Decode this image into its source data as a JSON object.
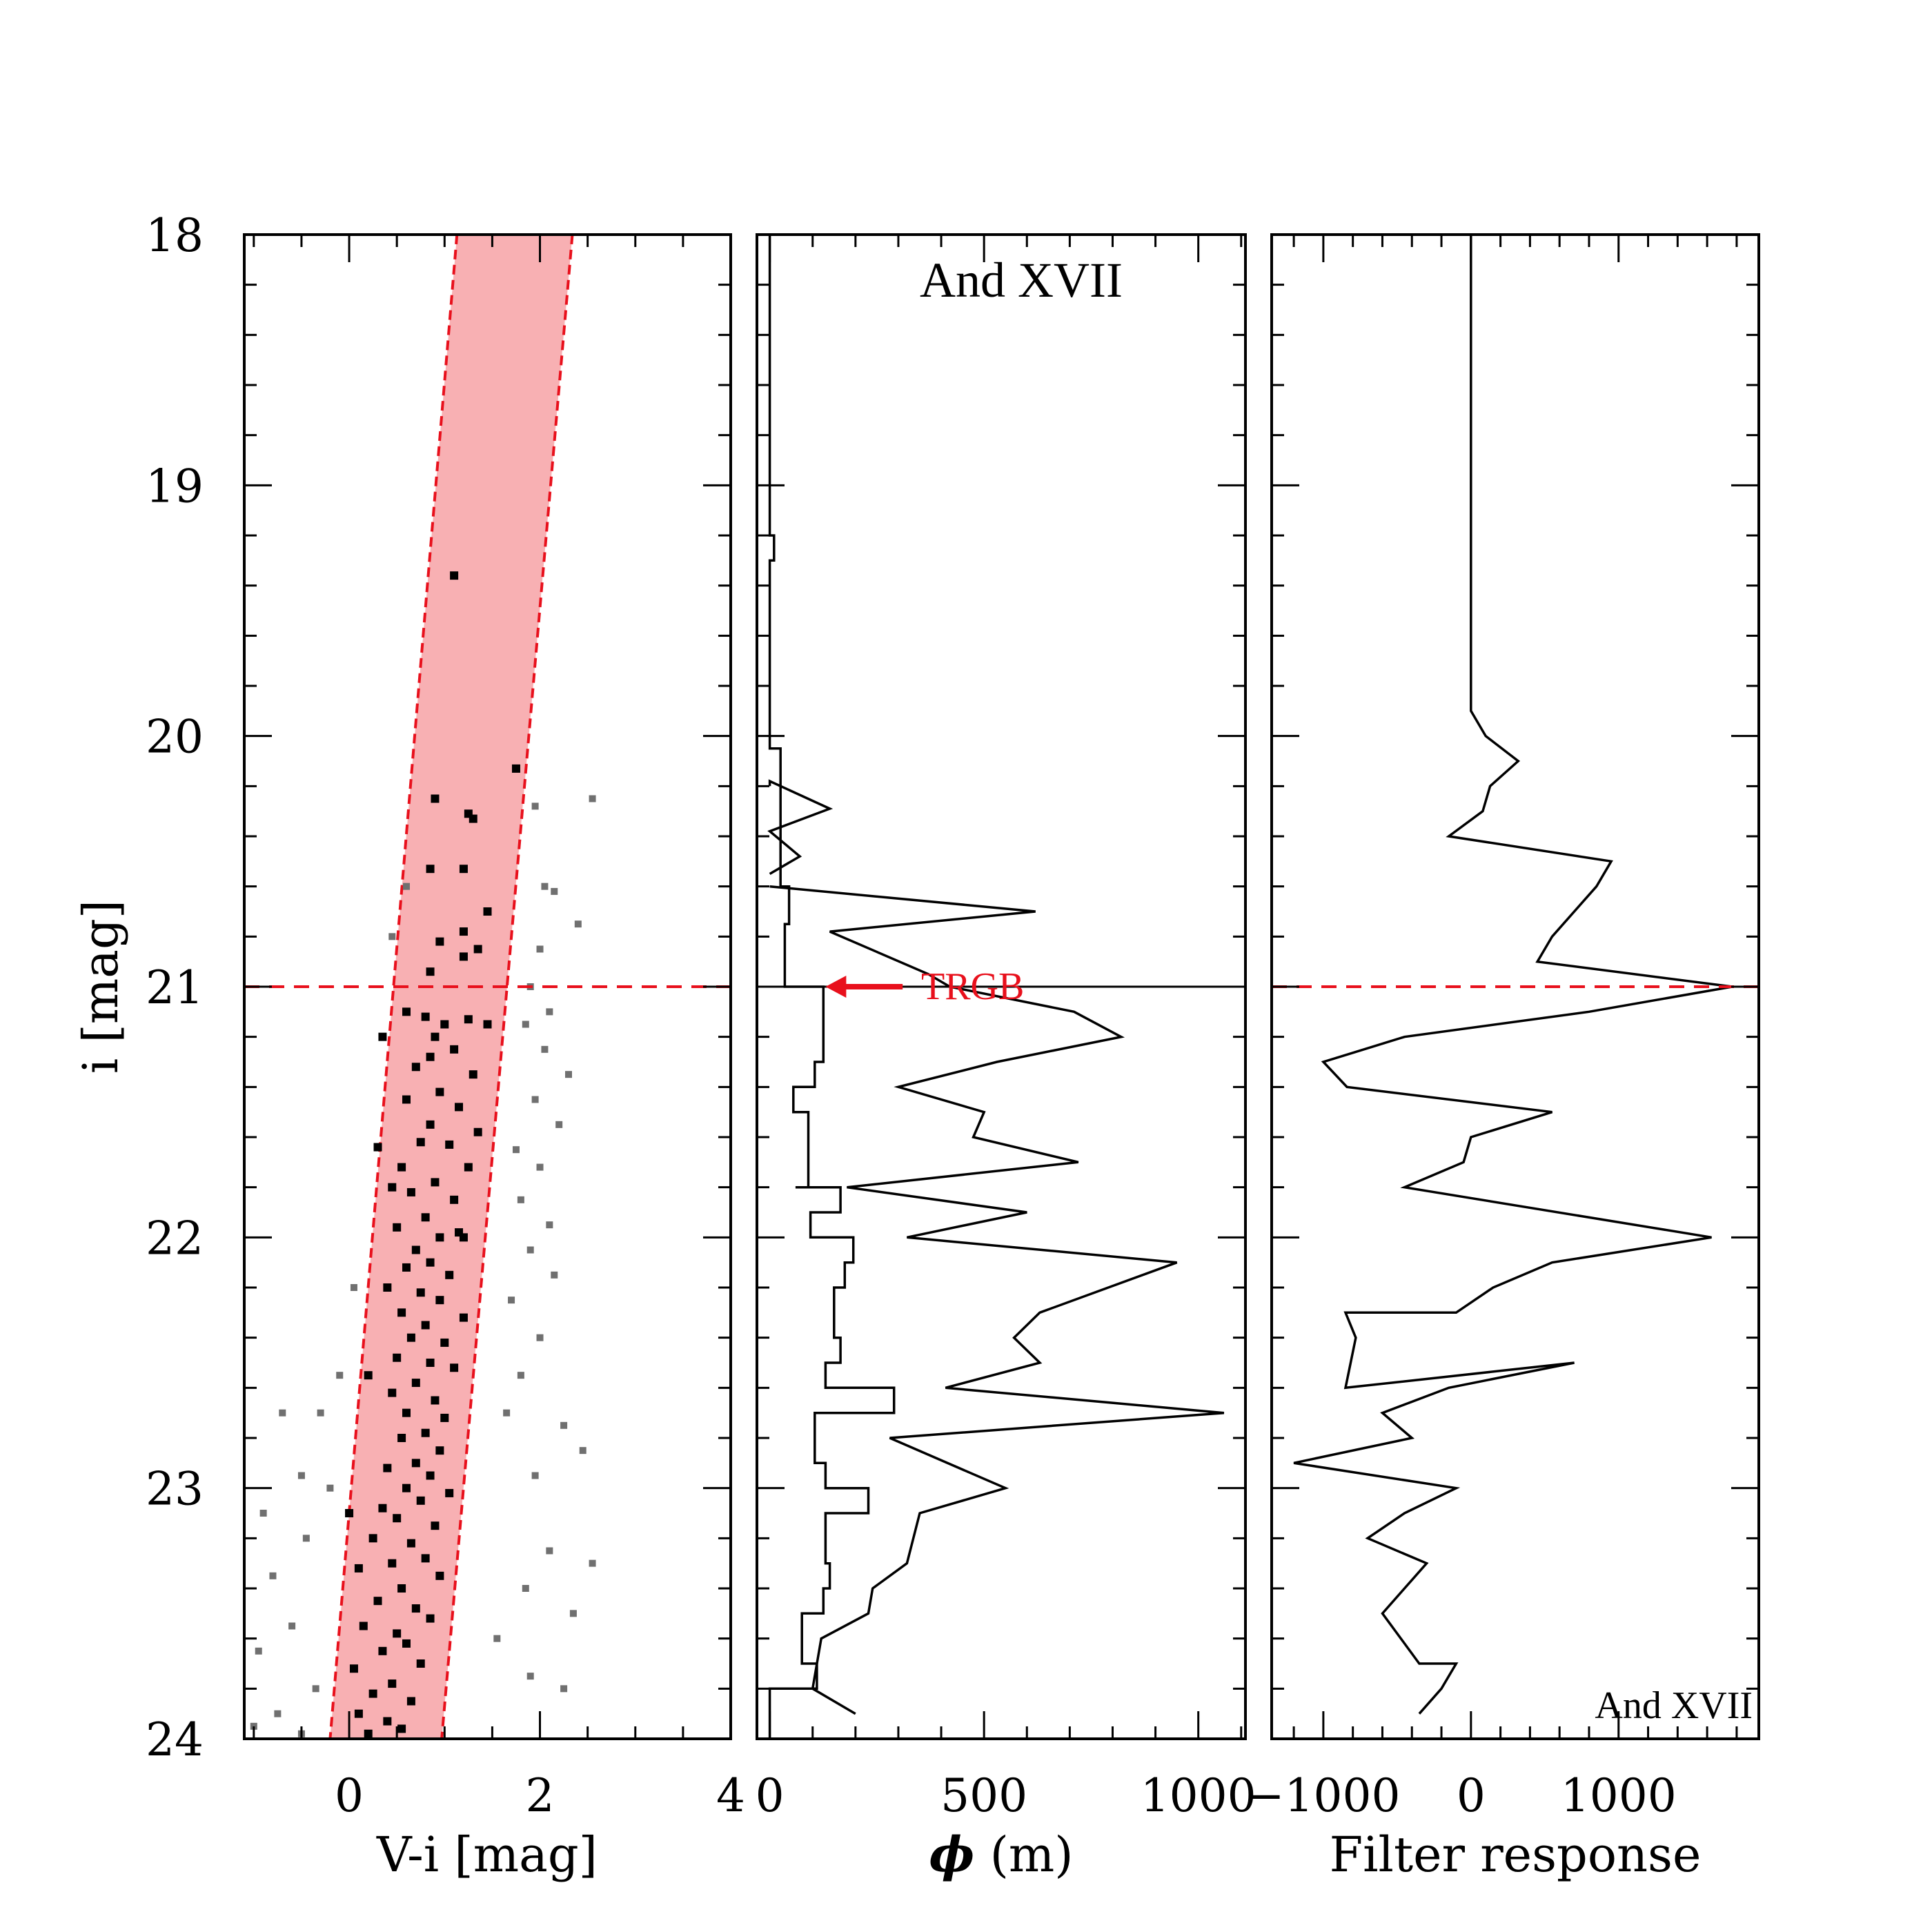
{
  "colors": {
    "rgb_band_fill": "#f8b0b3",
    "rgb_band_edge": "#e8101c",
    "trgb_line": "#e8101c",
    "trgb_label": "#e8101c",
    "member_star": "#000000",
    "field_star": "#707070",
    "line": "#000000"
  },
  "chart_data": [
    {
      "panel": "cmd",
      "type": "scatter",
      "xlabel": "V-i [mag]",
      "ylabel": "i [mag]",
      "xlim": [
        -1.1,
        4.0
      ],
      "ylim": [
        24,
        18
      ],
      "xticks": [
        0,
        2,
        4
      ],
      "xtick_labels": [
        "0",
        "2",
        "4"
      ],
      "yticks": [
        18,
        19,
        20,
        21,
        22,
        23,
        24
      ],
      "ytick_labels": [
        "18",
        "19",
        "20",
        "21",
        "22",
        "23",
        "24"
      ],
      "rgb_selection_band": {
        "left_edge": [
          [
            1.13,
            18.0
          ],
          [
            -0.2,
            24.0
          ]
        ],
        "right_edge": [
          [
            2.34,
            18.0
          ],
          [
            0.97,
            24.0
          ]
        ]
      },
      "trgb_mag": 21.0,
      "member_stars": [
        [
          1.1,
          19.36
        ],
        [
          1.75,
          20.13
        ],
        [
          0.9,
          20.25
        ],
        [
          1.25,
          20.31
        ],
        [
          1.3,
          20.33
        ],
        [
          0.85,
          20.53
        ],
        [
          1.2,
          20.53
        ],
        [
          1.45,
          20.7
        ],
        [
          1.2,
          20.78
        ],
        [
          0.95,
          20.82
        ],
        [
          1.35,
          20.85
        ],
        [
          1.2,
          20.88
        ],
        [
          0.85,
          20.94
        ],
        [
          0.6,
          21.1
        ],
        [
          0.8,
          21.12
        ],
        [
          1.0,
          21.15
        ],
        [
          1.25,
          21.13
        ],
        [
          1.45,
          21.15
        ],
        [
          0.9,
          21.2
        ],
        [
          1.1,
          21.25
        ],
        [
          0.7,
          21.32
        ],
        [
          0.85,
          21.28
        ],
        [
          1.3,
          21.35
        ],
        [
          0.95,
          21.42
        ],
        [
          0.6,
          21.45
        ],
        [
          1.15,
          21.48
        ],
        [
          0.85,
          21.55
        ],
        [
          1.35,
          21.58
        ],
        [
          0.75,
          21.62
        ],
        [
          1.05,
          21.63
        ],
        [
          0.3,
          21.64
        ],
        [
          1.25,
          21.72
        ],
        [
          0.55,
          21.72
        ],
        [
          0.9,
          21.78
        ],
        [
          0.65,
          21.82
        ],
        [
          1.1,
          21.85
        ],
        [
          0.8,
          21.92
        ],
        [
          0.5,
          21.96
        ],
        [
          0.95,
          22.0
        ],
        [
          1.15,
          21.98
        ],
        [
          0.7,
          22.05
        ],
        [
          0.85,
          22.1
        ],
        [
          0.6,
          22.12
        ],
        [
          1.05,
          22.15
        ],
        [
          0.4,
          22.2
        ],
        [
          0.75,
          22.22
        ],
        [
          0.95,
          22.25
        ],
        [
          0.55,
          22.3
        ],
        [
          1.2,
          22.32
        ],
        [
          0.8,
          22.35
        ],
        [
          0.65,
          22.4
        ],
        [
          1.0,
          22.42
        ],
        [
          0.5,
          22.48
        ],
        [
          0.85,
          22.5
        ],
        [
          1.1,
          22.52
        ],
        [
          0.7,
          22.58
        ],
        [
          0.45,
          22.62
        ],
        [
          0.9,
          22.65
        ],
        [
          0.6,
          22.7
        ],
        [
          1.0,
          22.72
        ],
        [
          0.8,
          22.78
        ],
        [
          0.55,
          22.8
        ],
        [
          0.95,
          22.85
        ],
        [
          0.7,
          22.9
        ],
        [
          0.4,
          22.92
        ],
        [
          0.85,
          22.95
        ],
        [
          0.6,
          23.0
        ],
        [
          1.05,
          23.02
        ],
        [
          0.75,
          23.05
        ],
        [
          0.35,
          23.08
        ],
        [
          0.5,
          23.12
        ],
        [
          0.9,
          23.15
        ],
        [
          0.25,
          23.2
        ],
        [
          0.65,
          23.22
        ],
        [
          0.8,
          23.28
        ],
        [
          0.45,
          23.3
        ],
        [
          0.1,
          23.32
        ],
        [
          0.95,
          23.35
        ],
        [
          0.55,
          23.4
        ],
        [
          0.3,
          23.45
        ],
        [
          0.7,
          23.48
        ],
        [
          0.85,
          23.52
        ],
        [
          0.15,
          23.55
        ],
        [
          0.5,
          23.58
        ],
        [
          0.6,
          23.62
        ],
        [
          0.35,
          23.65
        ],
        [
          0.75,
          23.7
        ],
        [
          0.05,
          23.72
        ],
        [
          0.45,
          23.78
        ],
        [
          0.25,
          23.82
        ],
        [
          0.65,
          23.85
        ],
        [
          0.1,
          23.9
        ],
        [
          0.4,
          23.93
        ],
        [
          0.55,
          23.96
        ],
        [
          0.2,
          23.98
        ],
        [
          0.35,
          21.2
        ],
        [
          0.45,
          21.8
        ],
        [
          0.2,
          22.55
        ],
        [
          0.0,
          23.1
        ],
        [
          1.2,
          22.0
        ]
      ],
      "field_stars": [
        [
          2.55,
          20.25
        ],
        [
          1.95,
          20.28
        ],
        [
          2.05,
          20.6
        ],
        [
          2.15,
          20.62
        ],
        [
          2.4,
          20.75
        ],
        [
          2.0,
          20.85
        ],
        [
          1.9,
          21.0
        ],
        [
          2.1,
          21.1
        ],
        [
          1.85,
          21.15
        ],
        [
          2.05,
          21.25
        ],
        [
          2.3,
          21.35
        ],
        [
          1.95,
          21.45
        ],
        [
          2.2,
          21.55
        ],
        [
          1.75,
          21.65
        ],
        [
          2.0,
          21.72
        ],
        [
          1.8,
          21.85
        ],
        [
          2.1,
          21.95
        ],
        [
          1.9,
          22.05
        ],
        [
          2.15,
          22.15
        ],
        [
          1.7,
          22.25
        ],
        [
          2.0,
          22.4
        ],
        [
          1.8,
          22.55
        ],
        [
          2.25,
          22.75
        ],
        [
          1.65,
          22.7
        ],
        [
          2.45,
          22.85
        ],
        [
          1.95,
          22.95
        ],
        [
          2.1,
          23.25
        ],
        [
          2.55,
          23.3
        ],
        [
          1.85,
          23.4
        ],
        [
          2.35,
          23.5
        ],
        [
          1.55,
          23.6
        ],
        [
          1.9,
          23.75
        ],
        [
          2.25,
          23.8
        ],
        [
          -0.3,
          22.7
        ],
        [
          -0.7,
          22.7
        ],
        [
          -0.5,
          22.95
        ],
        [
          -0.9,
          23.1
        ],
        [
          -0.45,
          23.2
        ],
        [
          -0.8,
          23.35
        ],
        [
          -0.6,
          23.55
        ],
        [
          -0.95,
          23.65
        ],
        [
          -0.35,
          23.8
        ],
        [
          -0.75,
          23.9
        ],
        [
          -1.0,
          23.95
        ],
        [
          -0.5,
          23.98
        ],
        [
          0.05,
          22.2
        ],
        [
          -0.1,
          22.55
        ],
        [
          -0.2,
          23.0
        ],
        [
          0.6,
          20.6
        ],
        [
          0.45,
          20.8
        ]
      ]
    },
    {
      "panel": "phi",
      "type": "line",
      "xlabel_symbol": "ϕ",
      "xlabel_rest": " (m)",
      "annotation": "And XVII",
      "trgb_label": "TRGB",
      "xlim": [
        -30,
        1110
      ],
      "ylim": [
        24,
        18
      ],
      "xticks": [
        0,
        500,
        1000
      ],
      "xtick_labels": [
        "0",
        "500",
        "1000"
      ],
      "histogram_steps": [
        [
          0,
          18.0
        ],
        [
          0,
          19.2
        ],
        [
          10,
          19.2
        ],
        [
          10,
          19.3
        ],
        [
          0,
          19.3
        ],
        [
          0,
          20.05
        ],
        [
          25,
          20.05
        ],
        [
          25,
          20.6
        ],
        [
          45,
          20.6
        ],
        [
          45,
          20.75
        ],
        [
          35,
          20.75
        ],
        [
          35,
          21.0
        ],
        [
          125,
          21.0
        ],
        [
          125,
          21.3
        ],
        [
          105,
          21.3
        ],
        [
          105,
          21.4
        ],
        [
          55,
          21.4
        ],
        [
          55,
          21.5
        ],
        [
          90,
          21.5
        ],
        [
          90,
          21.8
        ],
        [
          60,
          21.8
        ],
        [
          60,
          21.8
        ],
        [
          165,
          21.8
        ],
        [
          165,
          21.9
        ],
        [
          95,
          21.9
        ],
        [
          95,
          22.0
        ],
        [
          195,
          22.0
        ],
        [
          195,
          22.1
        ],
        [
          175,
          22.1
        ],
        [
          175,
          22.2
        ],
        [
          150,
          22.2
        ],
        [
          150,
          22.4
        ],
        [
          165,
          22.4
        ],
        [
          165,
          22.5
        ],
        [
          130,
          22.5
        ],
        [
          130,
          22.6
        ],
        [
          290,
          22.6
        ],
        [
          290,
          22.7
        ],
        [
          105,
          22.7
        ],
        [
          105,
          22.9
        ],
        [
          130,
          22.9
        ],
        [
          130,
          23.0
        ],
        [
          230,
          23.0
        ],
        [
          230,
          23.1
        ],
        [
          130,
          23.1
        ],
        [
          130,
          23.3
        ],
        [
          140,
          23.3
        ],
        [
          140,
          23.4
        ],
        [
          125,
          23.4
        ],
        [
          125,
          23.5
        ],
        [
          75,
          23.5
        ],
        [
          75,
          23.7
        ],
        [
          110,
          23.7
        ],
        [
          110,
          23.8
        ],
        [
          0,
          23.8
        ],
        [
          0,
          24.0
        ]
      ],
      "filtered_curve": [
        [
          0,
          20.6
        ],
        [
          620,
          20.7
        ],
        [
          140,
          20.78
        ],
        [
          370,
          20.95
        ],
        [
          420,
          21.0
        ],
        [
          710,
          21.1
        ],
        [
          820,
          21.2
        ],
        [
          530,
          21.3
        ],
        [
          300,
          21.4
        ],
        [
          500,
          21.5
        ],
        [
          475,
          21.6
        ],
        [
          720,
          21.7
        ],
        [
          180,
          21.8
        ],
        [
          600,
          21.9
        ],
        [
          320,
          22.0
        ],
        [
          950,
          22.1
        ],
        [
          630,
          22.3
        ],
        [
          570,
          22.4
        ],
        [
          630,
          22.5
        ],
        [
          410,
          22.6
        ],
        [
          1060,
          22.7
        ],
        [
          280,
          22.8
        ],
        [
          550,
          23.0
        ],
        [
          350,
          23.1
        ],
        [
          320,
          23.3
        ],
        [
          240,
          23.4
        ],
        [
          230,
          23.5
        ],
        [
          120,
          23.6
        ],
        [
          100,
          23.8
        ],
        [
          200,
          23.9
        ]
      ],
      "small_peaks": [
        [
          0,
          20.2
        ],
        [
          0,
          20.18
        ],
        [
          140,
          20.29
        ],
        [
          0,
          20.38
        ],
        [
          70,
          20.48
        ],
        [
          0,
          20.55
        ]
      ]
    },
    {
      "panel": "filter",
      "type": "line",
      "xlabel": "Filter response",
      "annotation": "And XVII",
      "xlim": [
        -1350,
        1950
      ],
      "ylim": [
        24,
        18
      ],
      "xticks": [
        -1000,
        0,
        1000
      ],
      "xtick_labels": [
        "−1000",
        "0",
        "1000"
      ],
      "curve": [
        [
          0,
          18.0
        ],
        [
          0,
          19.1
        ],
        [
          0,
          19.9
        ],
        [
          100,
          20.0
        ],
        [
          320,
          20.1
        ],
        [
          130,
          20.2
        ],
        [
          80,
          20.3
        ],
        [
          -150,
          20.4
        ],
        [
          950,
          20.5
        ],
        [
          850,
          20.6
        ],
        [
          550,
          20.8
        ],
        [
          450,
          20.9
        ],
        [
          1770,
          21.0
        ],
        [
          800,
          21.1
        ],
        [
          -450,
          21.2
        ],
        [
          -1000,
          21.3
        ],
        [
          -840,
          21.4
        ],
        [
          550,
          21.5
        ],
        [
          0,
          21.6
        ],
        [
          -50,
          21.7
        ],
        [
          -450,
          21.8
        ],
        [
          1630,
          22.0
        ],
        [
          550,
          22.1
        ],
        [
          150,
          22.2
        ],
        [
          -100,
          22.3
        ],
        [
          -850,
          22.3
        ],
        [
          -780,
          22.4
        ],
        [
          -850,
          22.6
        ],
        [
          700,
          22.5
        ],
        [
          -150,
          22.6
        ],
        [
          -600,
          22.7
        ],
        [
          -400,
          22.8
        ],
        [
          -1200,
          22.9
        ],
        [
          -100,
          23.0
        ],
        [
          -450,
          23.1
        ],
        [
          -700,
          23.2
        ],
        [
          -300,
          23.3
        ],
        [
          -600,
          23.5
        ],
        [
          -350,
          23.7
        ],
        [
          -100,
          23.7
        ],
        [
          -200,
          23.8
        ],
        [
          -350,
          23.9
        ]
      ]
    }
  ]
}
